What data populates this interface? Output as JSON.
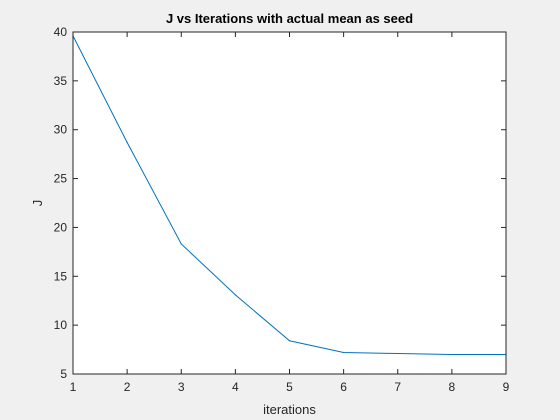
{
  "chart_data": {
    "type": "line",
    "title": "J vs Iterations with actual mean as seed",
    "xlabel": "iterations",
    "ylabel": "J",
    "xlim": [
      1,
      9
    ],
    "ylim": [
      5,
      40
    ],
    "xticks": [
      1,
      2,
      3,
      4,
      5,
      6,
      7,
      8,
      9
    ],
    "yticks": [
      5,
      10,
      15,
      20,
      25,
      30,
      35,
      40
    ],
    "grid": false,
    "series": [
      {
        "color": "#0072bd",
        "x": [
          1,
          2,
          3,
          4,
          5,
          6,
          7,
          8,
          9
        ],
        "y": [
          39.6,
          28.7,
          18.3,
          13.1,
          8.4,
          7.2,
          7.1,
          7.0,
          7.0
        ]
      }
    ]
  }
}
